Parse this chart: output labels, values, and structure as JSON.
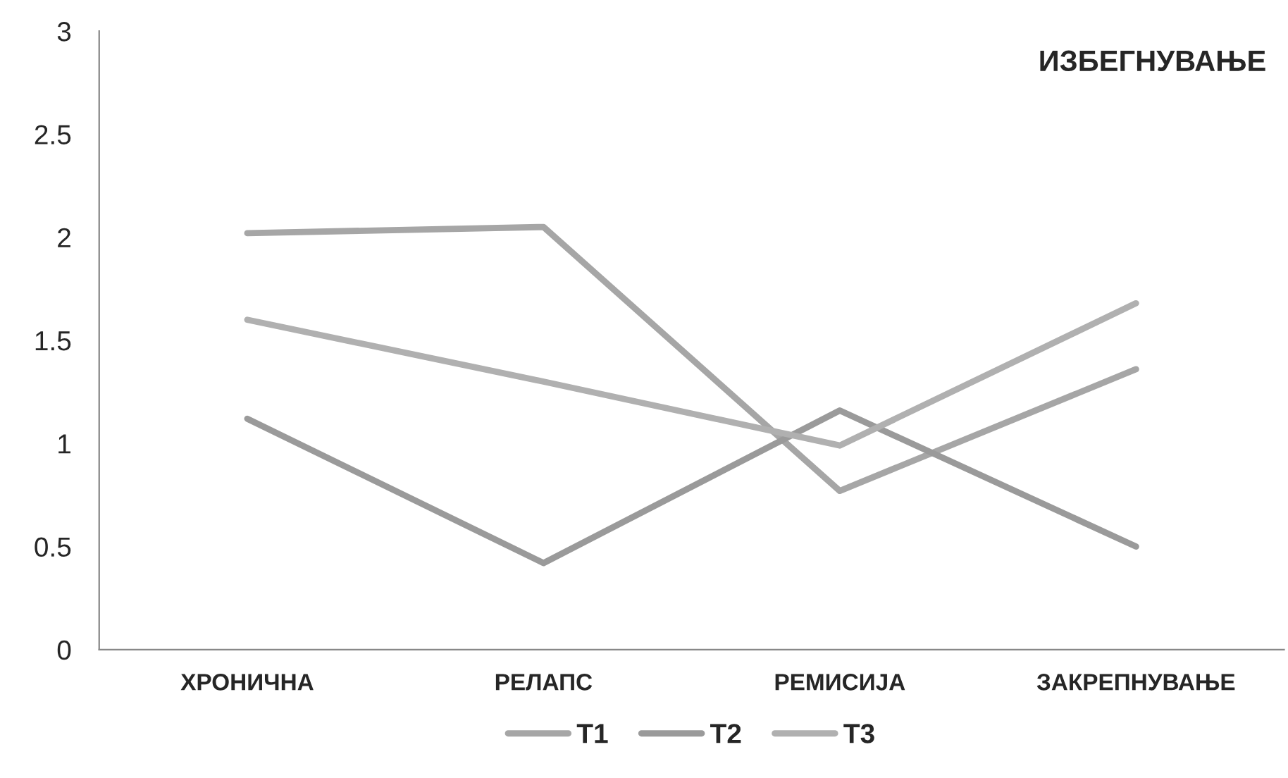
{
  "chart_data": {
    "type": "line",
    "title": "ИЗБЕГНУВАЊЕ",
    "categories": [
      "ХРОНИЧНА",
      "РЕЛАПС",
      "РЕМИСИЈА",
      "ЗАКРЕПНУВАЊЕ"
    ],
    "series": [
      {
        "name": "T1",
        "color": "#a6a6a6",
        "values": [
          2.02,
          2.05,
          0.77,
          1.36
        ]
      },
      {
        "name": "T2",
        "color": "#9a9a9a",
        "values": [
          1.12,
          0.42,
          1.16,
          0.5
        ]
      },
      {
        "name": "T3",
        "color": "#b0b0b0",
        "values": [
          1.6,
          1.3,
          0.99,
          1.68
        ]
      }
    ],
    "ylim": [
      0,
      3
    ],
    "yticks": [
      0,
      0.5,
      1,
      1.5,
      2,
      2.5,
      3
    ],
    "grid": false,
    "legend": "bottom",
    "marker": "none",
    "line_style": "solid"
  }
}
